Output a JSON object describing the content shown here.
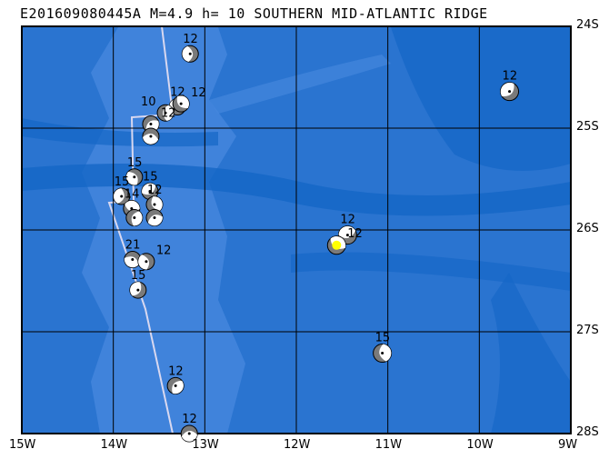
{
  "title": "E201609080445A M=4.9 h= 10 SOUTHERN MID-ATLANTIC RIDGE",
  "map": {
    "lon_range": [
      -15,
      -9
    ],
    "lat_range": [
      -28,
      -24
    ],
    "lon_ticks": [
      "15W",
      "14W",
      "13W",
      "12W",
      "11W",
      "10W",
      "9W"
    ],
    "lat_ticks": [
      "24S",
      "25S",
      "26S",
      "27S",
      "28S"
    ],
    "colors": {
      "ocean": "#2a74d0",
      "shallow": "#4a8ae0",
      "deep": "#1466c6",
      "plate_boundary": "#d8d8f0",
      "highlight": "#ffff00"
    }
  },
  "events": [
    {
      "lon": -13.16,
      "lat": -24.27,
      "depth": "12"
    },
    {
      "lon": -9.67,
      "lat": -24.64,
      "depth": "12"
    },
    {
      "lon": -13.3,
      "lat": -24.79,
      "depth": "12"
    },
    {
      "lon": -13.26,
      "lat": -24.76,
      "depth": "12"
    },
    {
      "lon": -13.43,
      "lat": -24.85,
      "depth": "10"
    },
    {
      "lon": -13.59,
      "lat": -24.96,
      "depth": "12"
    },
    {
      "lon": -13.59,
      "lat": -25.08,
      "depth": ""
    },
    {
      "lon": -13.77,
      "lat": -25.48,
      "depth": "15"
    },
    {
      "lon": -13.91,
      "lat": -25.67,
      "depth": "15"
    },
    {
      "lon": -13.6,
      "lat": -25.62,
      "depth": "15"
    },
    {
      "lon": -13.8,
      "lat": -25.79,
      "depth": "14"
    },
    {
      "lon": -13.55,
      "lat": -25.75,
      "depth": "12"
    },
    {
      "lon": -13.77,
      "lat": -25.88,
      "depth": ""
    },
    {
      "lon": -13.55,
      "lat": -25.88,
      "depth": ""
    },
    {
      "lon": -13.79,
      "lat": -26.29,
      "depth": "21"
    },
    {
      "lon": -13.64,
      "lat": -26.31,
      "depth": "12"
    },
    {
      "lon": -13.73,
      "lat": -26.59,
      "depth": "15"
    },
    {
      "lon": -11.44,
      "lat": -26.05,
      "depth": "12"
    },
    {
      "lon": -11.56,
      "lat": -26.15,
      "depth": "12",
      "highlight": true
    },
    {
      "lon": -11.06,
      "lat": -27.21,
      "depth": "15"
    },
    {
      "lon": -13.32,
      "lat": -27.53,
      "depth": "12"
    },
    {
      "lon": -13.17,
      "lat": -28.0,
      "depth": "12"
    }
  ]
}
